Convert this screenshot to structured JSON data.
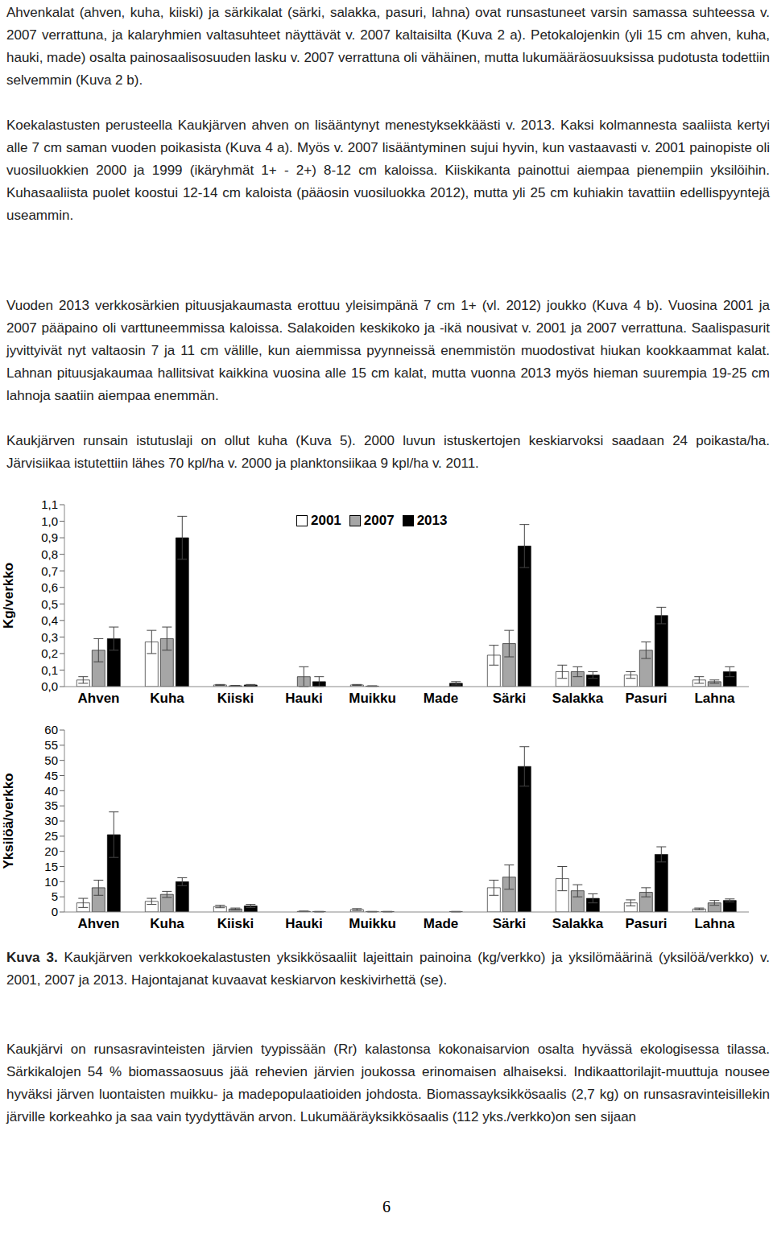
{
  "paragraphs_top": [
    "Ahvenkalat (ahven, kuha, kiiski) ja särkikalat (särki, salakka, pasuri, lahna) ovat runsastuneet varsin samassa suhteessa v. 2007 verrattuna, ja kalaryhmien valtasuhteet näyttävät v. 2007 kaltaisilta (Kuva 2 a). Petokalojenkin (yli 15 cm ahven, kuha, hauki, made) osalta painosaalisosuuden lasku v. 2007 verrattuna oli vähäinen, mutta lukumääräosuuksissa pudotusta todettiin selvemmin (Kuva 2 b).",
    "Koekalastusten perusteella Kaukjärven ahven on lisääntynyt menestyksekkäästi v. 2013. Kaksi kolmannesta saaliista kertyi alle 7 cm saman vuoden poikasista (Kuva 4 a). Myös v. 2007 lisääntyminen sujui hyvin, kun vastaavasti v. 2001 painopiste oli vuosiluokkien 2000 ja 1999 (ikäryhmät 1+ - 2+) 8-12 cm kaloissa. Kiiskikanta painottui aiempaa pienempiin yksilöihin. Kuhasaaliista puolet koostui 12-14 cm kaloista (pääosin vuosiluokka 2012), mutta yli 25 cm kuhiakin tavattiin edellispyyntejä useammin.",
    "Vuoden 2013 verkkosärkien pituusjakaumasta erottuu yleisimpänä 7 cm 1+ (vl. 2012) joukko (Kuva 4 b). Vuosina 2001 ja 2007 pääpaino oli varttuneemmissa kaloissa. Salakoiden keskikoko ja -ikä nousivat v. 2001 ja 2007 verrattuna. Saalispasurit jyvittyivät nyt valtaosin 7 ja 11 cm välille, kun aiemmissa pyynneissä enemmistön muodostivat hiukan kookkaammat kalat. Lahnan pituusjakaumaa hallitsivat kaikkina vuosina alle 15 cm kalat, mutta vuonna 2013 myös hieman suurempia 19-25 cm lahnoja saatiin aiempaa enemmän.",
    "Kaukjärven runsain istutuslaji on ollut kuha (Kuva 5). 2000 luvun istuskertojen keskiarvoksi saadaan 24 poikasta/ha. Järvisiikaa istutettiin lähes 70 kpl/ha v. 2000 ja planktonsiikaa 9 kpl/ha v. 2011."
  ],
  "chart_data": [
    {
      "type": "bar",
      "y_label": "Kg/verkko",
      "categories": [
        "Ahven",
        "Kuha",
        "Kiiski",
        "Hauki",
        "Muikku",
        "Made",
        "Särki",
        "Salakka",
        "Pasuri",
        "Lahna"
      ],
      "ylim": [
        0,
        1.1
      ],
      "yticks": [
        {
          "value": 0,
          "label": "0,0"
        },
        {
          "value": 0.1,
          "label": "0,1"
        },
        {
          "value": 0.2,
          "label": "0,2"
        },
        {
          "value": 0.3,
          "label": "0,3"
        },
        {
          "value": 0.4,
          "label": "0,4"
        },
        {
          "value": 0.5,
          "label": "0,5"
        },
        {
          "value": 0.6,
          "label": "0,6"
        },
        {
          "value": 0.7,
          "label": "0,7"
        },
        {
          "value": 0.8,
          "label": "0,8"
        },
        {
          "value": 0.9,
          "label": "0,9"
        },
        {
          "value": 1,
          "label": "1,0"
        },
        {
          "value": 1.1,
          "label": "1,1"
        }
      ],
      "legend": "top",
      "series": [
        {
          "name": "2001",
          "color": "#ffffff",
          "values": [
            0.04,
            0.27,
            0.01,
            0,
            0.01,
            0,
            0.19,
            0.09,
            0.07,
            0.04
          ],
          "errors": [
            0.02,
            0.07,
            0.003,
            0,
            0.003,
            0,
            0.06,
            0.04,
            0.02,
            0.02
          ]
        },
        {
          "name": "2007",
          "color": "#a6a6a6",
          "values": [
            0.22,
            0.29,
            0.005,
            0.06,
            0.003,
            0,
            0.26,
            0.09,
            0.22,
            0.03
          ],
          "errors": [
            0.07,
            0.07,
            0.002,
            0.06,
            0.002,
            0,
            0.08,
            0.03,
            0.05,
            0.01
          ]
        },
        {
          "name": "2013",
          "color": "#000000",
          "values": [
            0.29,
            0.9,
            0.01,
            0.03,
            0,
            0.02,
            0.85,
            0.07,
            0.43,
            0.09
          ],
          "errors": [
            0.07,
            0.13,
            0.003,
            0.03,
            0,
            0.01,
            0.13,
            0.02,
            0.05,
            0.03
          ]
        }
      ]
    },
    {
      "type": "bar",
      "y_label": "Yksilöä/verkko",
      "categories": [
        "Ahven",
        "Kuha",
        "Kiiski",
        "Hauki",
        "Muikku",
        "Made",
        "Särki",
        "Salakka",
        "Pasuri",
        "Lahna"
      ],
      "ylim": [
        0,
        60
      ],
      "yticks": [
        0,
        5,
        10,
        15,
        20,
        25,
        30,
        35,
        40,
        45,
        50,
        55,
        60
      ],
      "series": [
        {
          "name": "2001",
          "color": "#ffffff",
          "values": [
            3,
            3.5,
            1.8,
            0,
            0.8,
            0,
            8,
            11,
            3,
            1
          ],
          "errors": [
            1.5,
            1,
            0.4,
            0,
            0.3,
            0,
            2.5,
            4,
            1,
            0.3
          ]
        },
        {
          "name": "2007",
          "color": "#a6a6a6",
          "values": [
            8,
            5.8,
            1,
            0.2,
            0.1,
            0,
            11.5,
            7,
            6.5,
            3
          ],
          "errors": [
            2.5,
            1,
            0.3,
            0.1,
            0.1,
            0,
            4,
            2,
            1.5,
            0.8
          ]
        },
        {
          "name": "2013",
          "color": "#000000",
          "values": [
            25.5,
            10,
            2,
            0.1,
            0.1,
            0.1,
            48,
            4.5,
            19,
            3.8
          ],
          "errors": [
            7.5,
            1.3,
            0.5,
            0.1,
            0.1,
            0.1,
            6.5,
            1.5,
            2.5,
            0.5
          ]
        }
      ]
    }
  ],
  "caption": {
    "label": "Kuva 3.",
    "text": "Kaukjärven verkkokoekalastusten yksikkösaaliit lajeittain painoina (kg/verkko) ja yksilömäärinä (yksilöä/verkko) v. 2001, 2007 ja 2013. Hajontajanat kuvaavat keskiarvon keskivirhettä (se)."
  },
  "paragraphs_bottom": [
    "Kaukjärvi on runsasravinteisten järvien tyypissään (Rr) kalastonsa kokonaisarvion osalta hyvässä ekologisessa tilassa. Särkikalojen 54 % biomassaosuus jää rehevien järvien joukossa erinomaisen alhaiseksi. Indikaattorilajit-muuttuja nousee hyväksi järven luontaisten muikku- ja madepopulaatioiden johdosta. Biomassayksikkösaalis (2,7 kg) on runsasravinteisillekin järville korkeahko ja saa vain tyydyttävän arvon. Lukumääräyksikkösaalis (112 yks./verkko)on sen sijaan"
  ],
  "page_number": "6"
}
